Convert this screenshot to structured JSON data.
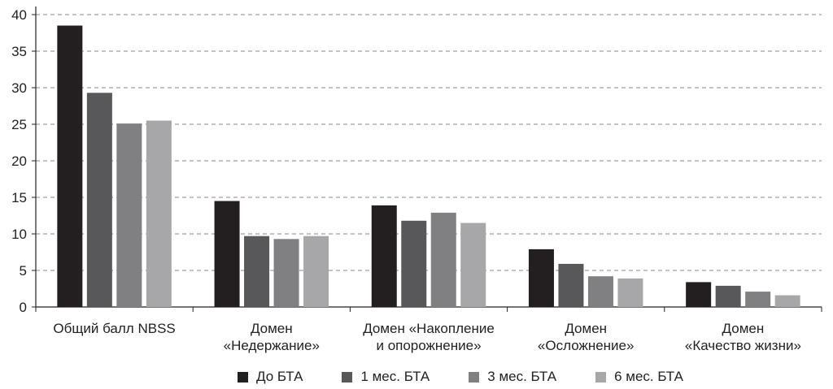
{
  "chart_data": {
    "type": "bar",
    "categories": [
      [
        "Общий балл NBSS"
      ],
      [
        "Домен",
        "«Недержание»"
      ],
      [
        "Домен «Накопление",
        "и опорожнение»"
      ],
      [
        "Домен",
        "«Осложнение»"
      ],
      [
        "Домен",
        "«Качество жизни»"
      ]
    ],
    "series": [
      {
        "name": "До БТА",
        "color": "#231f20",
        "values": [
          38.5,
          14.5,
          13.9,
          7.9,
          3.4
        ]
      },
      {
        "name": "1 мес. БТА",
        "color": "#58585a",
        "values": [
          29.3,
          9.7,
          11.8,
          5.9,
          2.9
        ]
      },
      {
        "name": "3 мес. БТА",
        "color": "#808082",
        "values": [
          25.1,
          9.3,
          12.9,
          4.2,
          2.1
        ]
      },
      {
        "name": "6 мес. БТА",
        "color": "#a7a7a9",
        "values": [
          25.5,
          9.7,
          11.5,
          3.9,
          1.6
        ]
      }
    ],
    "yticks": [
      0,
      5,
      10,
      15,
      20,
      25,
      30,
      35,
      40
    ],
    "ylim": [
      0,
      40
    ],
    "grid": true,
    "legend_position": "bottom"
  }
}
